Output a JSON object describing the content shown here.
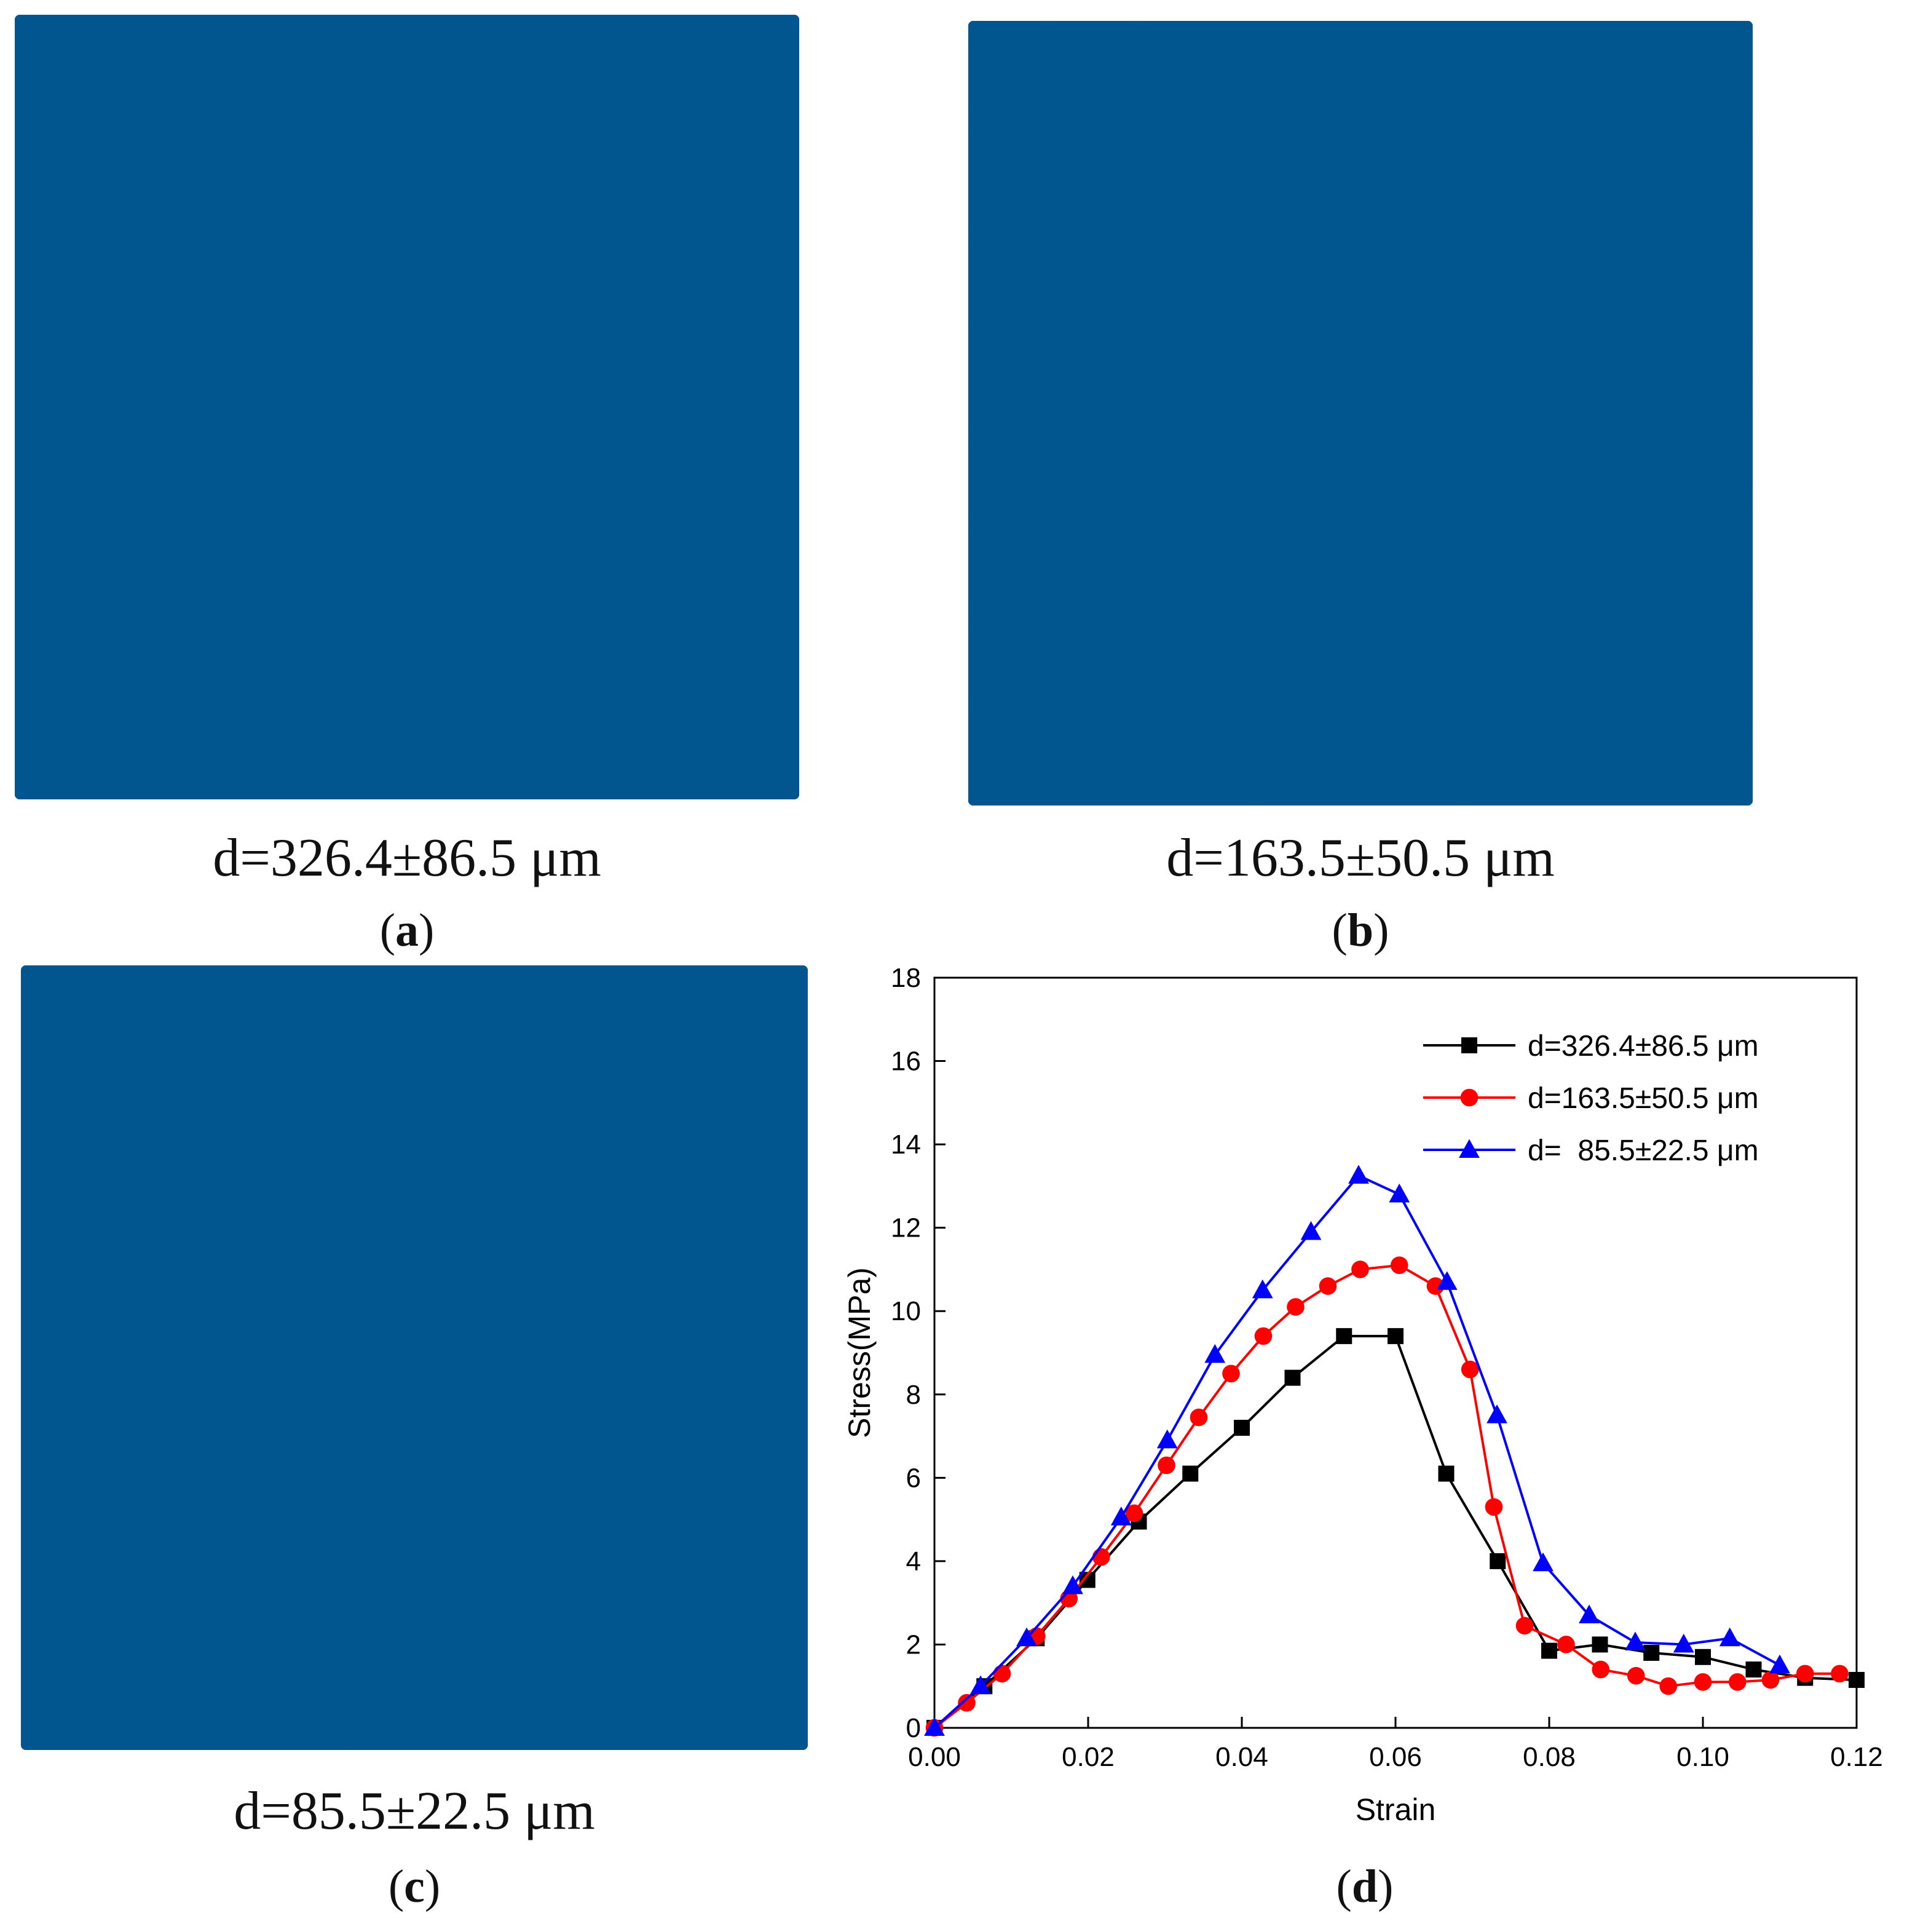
{
  "panels": {
    "a": {
      "size_label": "d=326.4±86.5 μm",
      "letter": "a"
    },
    "b": {
      "size_label": "d=163.5±50.5 μm",
      "letter": "b"
    },
    "c": {
      "size_label": "d=85.5±22.5 μm",
      "letter": "c"
    },
    "d": {
      "letter": "d"
    }
  },
  "colors": {
    "grain": "#01568f",
    "boundary": "#b8bfc2"
  },
  "chart_data": {
    "type": "line",
    "xlabel": "Strain",
    "ylabel": "Stress(MPa)",
    "xlim": [
      0,
      0.12
    ],
    "ylim": [
      0,
      18
    ],
    "xticks": [
      "0.00",
      "0.02",
      "0.04",
      "0.06",
      "0.08",
      "0.10",
      "0.12"
    ],
    "yticks": [
      "0",
      "2",
      "4",
      "6",
      "8",
      "10",
      "12",
      "14",
      "16",
      "18"
    ],
    "legend_position": "top-right",
    "series": [
      {
        "name": "d=326.4±86.5 μm",
        "color": "#000000",
        "marker": "square",
        "points": [
          [
            0.0,
            0.0
          ],
          [
            0.0065,
            1.0
          ],
          [
            0.0133,
            2.15
          ],
          [
            0.0199,
            3.55
          ],
          [
            0.0266,
            4.95
          ],
          [
            0.0333,
            6.1
          ],
          [
            0.04,
            7.2
          ],
          [
            0.0466,
            8.4
          ],
          [
            0.0533,
            9.4
          ],
          [
            0.06,
            9.4
          ],
          [
            0.0666,
            6.1
          ],
          [
            0.0733,
            4.0
          ],
          [
            0.08,
            1.85
          ],
          [
            0.0866,
            2.0
          ],
          [
            0.0933,
            1.8
          ],
          [
            0.1,
            1.7
          ],
          [
            0.1066,
            1.4
          ],
          [
            0.1133,
            1.2
          ],
          [
            0.12,
            1.15
          ]
        ]
      },
      {
        "name": "d=163.5±50.5 μm",
        "color": "#ff0000",
        "marker": "circle",
        "points": [
          [
            0.0,
            0.0
          ],
          [
            0.0042,
            0.6
          ],
          [
            0.0088,
            1.3
          ],
          [
            0.0133,
            2.2
          ],
          [
            0.0175,
            3.1
          ],
          [
            0.0217,
            4.1
          ],
          [
            0.026,
            5.15
          ],
          [
            0.0302,
            6.3
          ],
          [
            0.0344,
            7.45
          ],
          [
            0.0386,
            8.5
          ],
          [
            0.0428,
            9.4
          ],
          [
            0.047,
            10.1
          ],
          [
            0.0512,
            10.6
          ],
          [
            0.0554,
            11.0
          ],
          [
            0.0605,
            11.1
          ],
          [
            0.0652,
            10.6
          ],
          [
            0.0697,
            8.6
          ],
          [
            0.0728,
            5.3
          ],
          [
            0.0768,
            2.45
          ],
          [
            0.0822,
            2.0
          ],
          [
            0.0867,
            1.4
          ],
          [
            0.0913,
            1.25
          ],
          [
            0.0955,
            1.0
          ],
          [
            0.1,
            1.1
          ],
          [
            0.1045,
            1.1
          ],
          [
            0.1088,
            1.15
          ],
          [
            0.1133,
            1.3
          ],
          [
            0.1178,
            1.3
          ]
        ]
      },
      {
        "name": "d=  85.5±22.5 μm",
        "color": "#0000ff",
        "marker": "triangle",
        "points": [
          [
            0.0,
            0.0
          ],
          [
            0.006,
            1.0
          ],
          [
            0.012,
            2.15
          ],
          [
            0.018,
            3.4
          ],
          [
            0.0243,
            5.05
          ],
          [
            0.0303,
            6.9
          ],
          [
            0.0365,
            8.95
          ],
          [
            0.0427,
            10.5
          ],
          [
            0.049,
            11.9
          ],
          [
            0.0552,
            13.25
          ],
          [
            0.0605,
            12.8
          ],
          [
            0.0667,
            10.7
          ],
          [
            0.0732,
            7.5
          ],
          [
            0.0792,
            3.95
          ],
          [
            0.0852,
            2.7
          ],
          [
            0.0912,
            2.05
          ],
          [
            0.0975,
            2.0
          ],
          [
            0.1035,
            2.15
          ],
          [
            0.11,
            1.5
          ]
        ]
      }
    ]
  }
}
